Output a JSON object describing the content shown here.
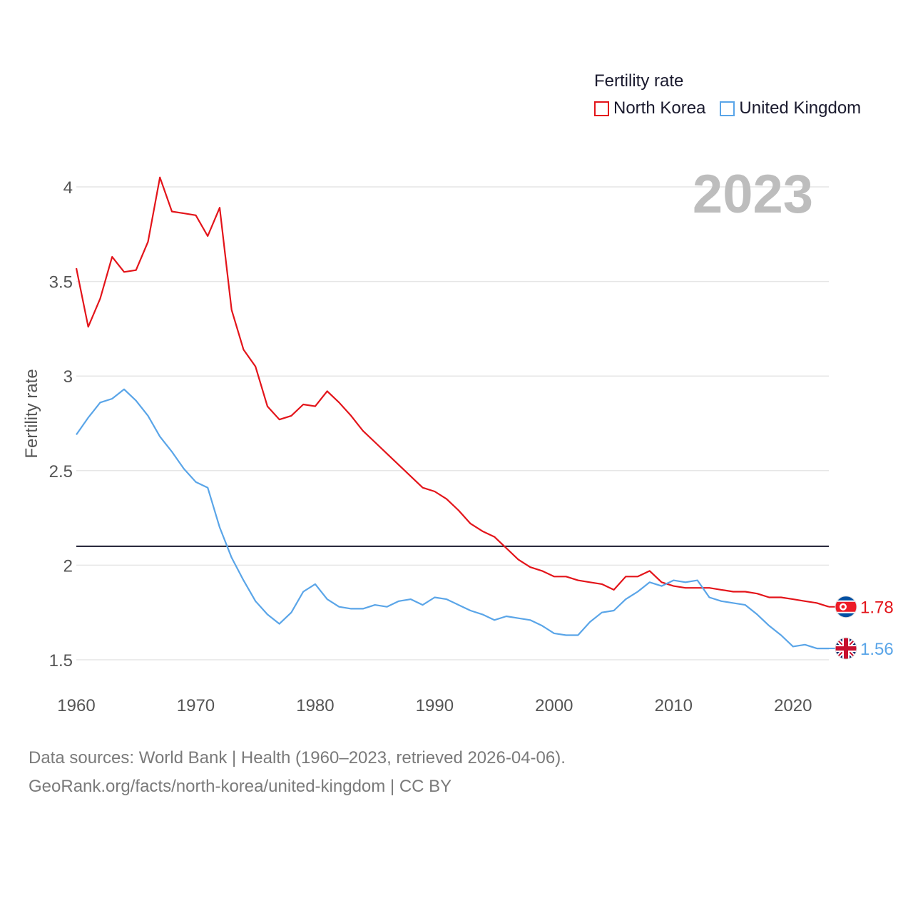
{
  "legend": {
    "title": "Fertility rate",
    "items": [
      {
        "label": "North Korea",
        "color": "#e3141a"
      },
      {
        "label": "United Kingdom",
        "color": "#5aa5e8"
      }
    ]
  },
  "year_label": "2023",
  "source": {
    "line1": "Data sources: World Bank | Health (1960–2023, retrieved 2026-04-06).",
    "line2": "GeoRank.org/facts/north-korea/united-kingdom | CC BY"
  },
  "chart_data": {
    "type": "line",
    "title": "",
    "xlabel": "",
    "ylabel": "Fertility rate",
    "xlim": [
      1960,
      2023
    ],
    "ylim": [
      1.5,
      4.1
    ],
    "xticks": [
      1960,
      1970,
      1980,
      1990,
      2000,
      2010,
      2020
    ],
    "yticks": [
      {
        "value": 1.5,
        "label": "1.5"
      },
      {
        "value": 2,
        "label": "2"
      },
      {
        "value": 2.5,
        "label": "2.5"
      },
      {
        "value": 3,
        "label": "3"
      },
      {
        "value": 3.5,
        "label": "3.5"
      },
      {
        "value": 4,
        "label": "4"
      }
    ],
    "grid": true,
    "reference_line": 2.1,
    "x": [
      1960,
      1961,
      1962,
      1963,
      1964,
      1965,
      1966,
      1967,
      1968,
      1969,
      1970,
      1971,
      1972,
      1973,
      1974,
      1975,
      1976,
      1977,
      1978,
      1979,
      1980,
      1981,
      1982,
      1983,
      1984,
      1985,
      1986,
      1987,
      1988,
      1989,
      1990,
      1991,
      1992,
      1993,
      1994,
      1995,
      1996,
      1997,
      1998,
      1999,
      2000,
      2001,
      2002,
      2003,
      2004,
      2005,
      2006,
      2007,
      2008,
      2009,
      2010,
      2011,
      2012,
      2013,
      2014,
      2015,
      2016,
      2017,
      2018,
      2019,
      2020,
      2021,
      2022,
      2023
    ],
    "series": [
      {
        "name": "North Korea",
        "color": "#e3141a",
        "end_label": "1.78",
        "values": [
          3.57,
          3.26,
          3.41,
          3.63,
          3.55,
          3.56,
          3.71,
          4.05,
          3.87,
          3.86,
          3.85,
          3.74,
          3.89,
          3.35,
          3.14,
          3.05,
          2.84,
          2.77,
          2.79,
          2.85,
          2.84,
          2.92,
          2.86,
          2.79,
          2.71,
          2.65,
          2.59,
          2.53,
          2.47,
          2.41,
          2.39,
          2.35,
          2.29,
          2.22,
          2.18,
          2.15,
          2.09,
          2.03,
          1.99,
          1.97,
          1.94,
          1.94,
          1.92,
          1.91,
          1.9,
          1.87,
          1.94,
          1.94,
          1.97,
          1.91,
          1.89,
          1.88,
          1.88,
          1.88,
          1.87,
          1.86,
          1.86,
          1.85,
          1.83,
          1.83,
          1.82,
          1.81,
          1.8,
          1.78
        ]
      },
      {
        "name": "United Kingdom",
        "color": "#5aa5e8",
        "end_label": "1.56",
        "values": [
          2.69,
          2.78,
          2.86,
          2.88,
          2.93,
          2.87,
          2.79,
          2.68,
          2.6,
          2.51,
          2.44,
          2.41,
          2.2,
          2.04,
          1.92,
          1.81,
          1.74,
          1.69,
          1.75,
          1.86,
          1.9,
          1.82,
          1.78,
          1.77,
          1.77,
          1.79,
          1.78,
          1.81,
          1.82,
          1.79,
          1.83,
          1.82,
          1.79,
          1.76,
          1.74,
          1.71,
          1.73,
          1.72,
          1.71,
          1.68,
          1.64,
          1.63,
          1.63,
          1.7,
          1.75,
          1.76,
          1.82,
          1.86,
          1.91,
          1.89,
          1.92,
          1.91,
          1.92,
          1.83,
          1.81,
          1.8,
          1.79,
          1.74,
          1.68,
          1.63,
          1.57,
          1.58,
          1.56,
          1.56
        ]
      }
    ]
  }
}
